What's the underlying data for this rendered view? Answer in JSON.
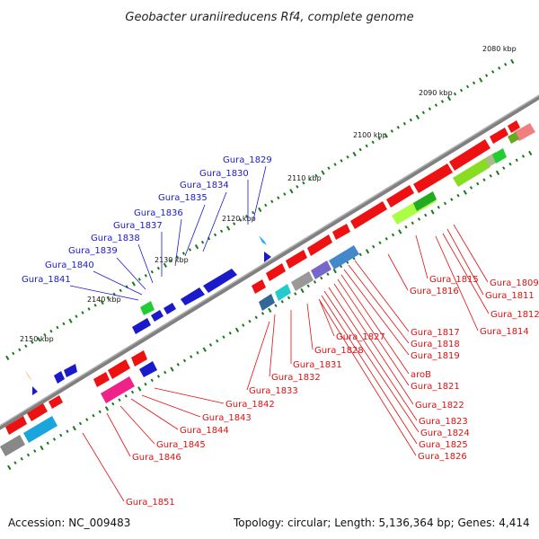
{
  "title": "Geobacter uraniireducens Rf4, complete genome",
  "footer": {
    "accession": "Accession: NC_009483",
    "summary": "Topology: circular; Length: 5,136,364 bp; Genes: 4,414"
  },
  "colors": {
    "backbone": "#808080",
    "plus_label": "#1a1acc",
    "minus_label": "#e01010",
    "tick": "#1a7a1a"
  },
  "ticks": [
    "2080 kbp",
    "2090 kbp",
    "2100 kbp",
    "2110 kbp",
    "2120 kbp",
    "2130 kbp",
    "2140 kbp",
    "2150 kbp"
  ],
  "labels_upper": [
    "Gura_1829",
    "Gura_1830",
    "Gura_1834",
    "Gura_1835",
    "Gura_1836",
    "Gura_1837",
    "Gura_1838",
    "Gura_1839",
    "Gura_1840",
    "Gura_1841"
  ],
  "labels_lower": [
    "Gura_1809",
    "Gura_1811",
    "Gura_1812",
    "Gura_1814",
    "Gura_1815",
    "Gura_1816",
    "Gura_1817",
    "Gura_1818",
    "Gura_1819",
    "aroB",
    "Gura_1821",
    "Gura_1822",
    "Gura_1823",
    "Gura_1824",
    "Gura_1825",
    "Gura_1826",
    "Gura_1827",
    "Gura_1828",
    "Gura_1831",
    "Gura_1832",
    "Gura_1833",
    "Gura_1842",
    "Gura_1843",
    "Gura_1844",
    "Gura_1845",
    "Gura_1846",
    "Gura_1851"
  ]
}
